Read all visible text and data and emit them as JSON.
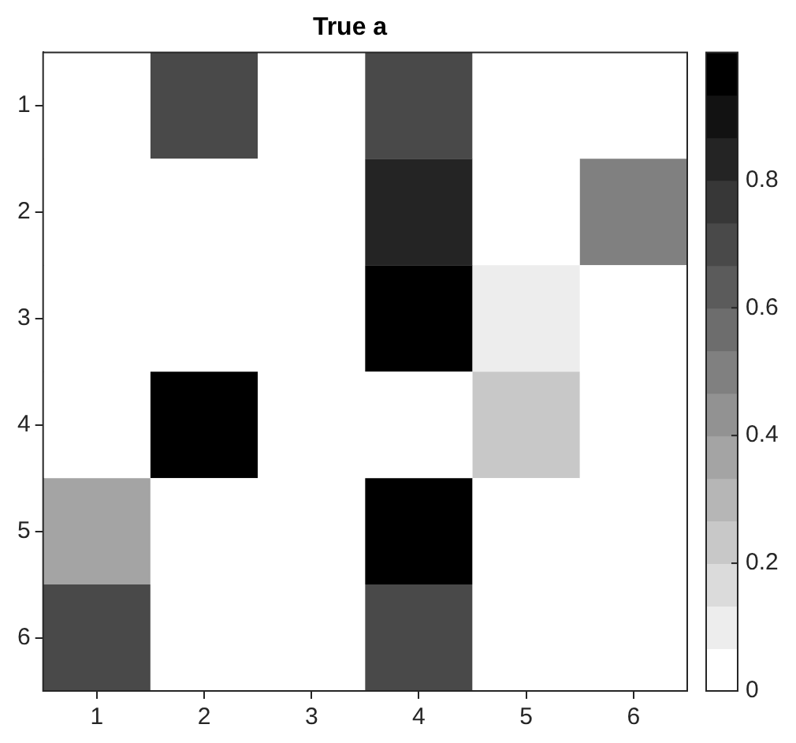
{
  "chart_data": {
    "type": "heatmap",
    "title": "True a",
    "categories": [
      "1",
      "2",
      "3",
      "4",
      "5",
      "6"
    ],
    "y_categories": [
      "1",
      "2",
      "3",
      "4",
      "5",
      "6"
    ],
    "cells": [
      [
        0,
        0.7,
        0,
        0.7,
        0,
        0
      ],
      [
        0,
        0,
        0,
        0.83,
        0,
        0.5
      ],
      [
        0,
        0,
        0,
        1,
        0.1,
        0
      ],
      [
        0,
        1,
        0,
        0,
        0.23,
        0
      ],
      [
        0.37,
        0,
        0,
        1,
        0,
        0
      ],
      [
        0.7,
        0,
        0,
        0.7,
        0,
        0
      ]
    ],
    "clim": [
      0,
      1
    ],
    "cticks": [
      0,
      0.2,
      0.4,
      0.6,
      0.8
    ]
  }
}
